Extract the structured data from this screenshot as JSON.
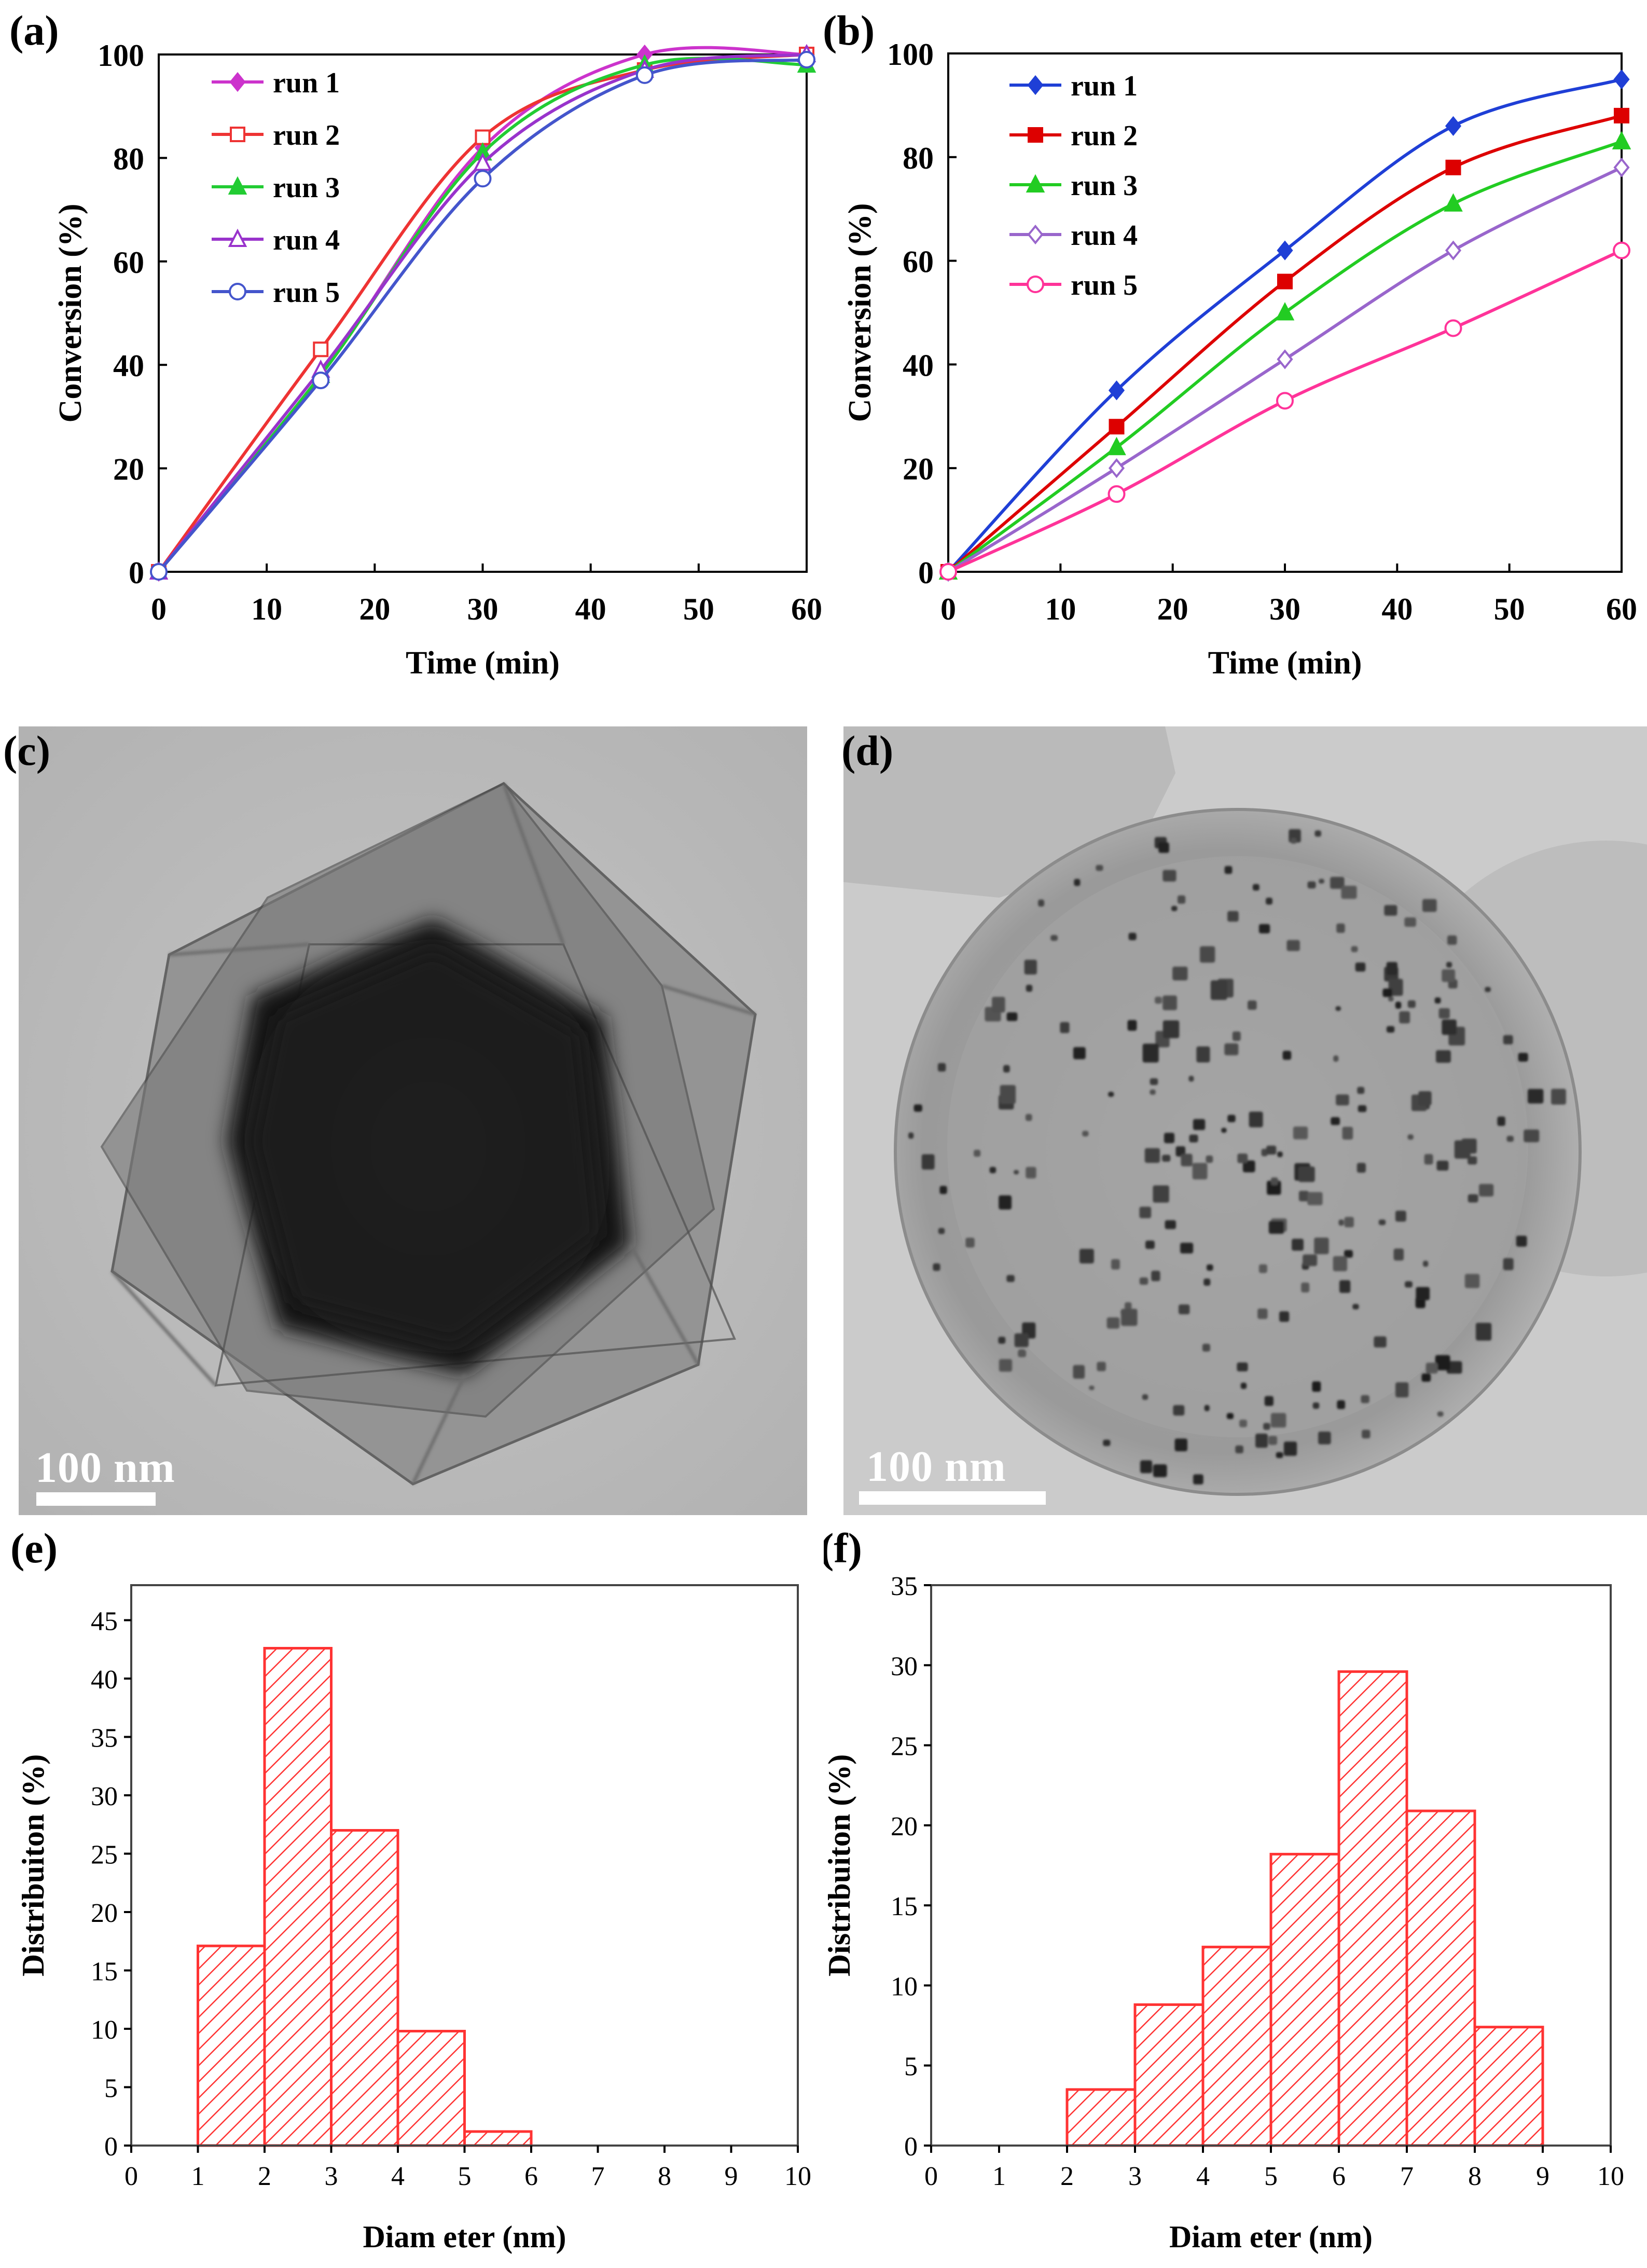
{
  "colors": {
    "run1_a": "#cc33cc",
    "run2_a": "#ee3333",
    "run3_a": "#22cc33",
    "run4_a": "#9933cc",
    "run5_a": "#4455cc",
    "run1_b": "#1f3fd6",
    "run2_b": "#dd0000",
    "run3_b": "#22cc22",
    "run4_b": "#9966cc",
    "run5_b": "#ff3399",
    "hist": "#ff3333"
  },
  "chart_data": [
    {
      "panel": "(a)",
      "type": "line",
      "xlabel": "Time (min)",
      "ylabel": "Conversion (%)",
      "xlim": [
        0,
        60
      ],
      "ylim": [
        0,
        100
      ],
      "xticks": [
        0,
        10,
        20,
        30,
        40,
        50,
        60
      ],
      "yticks": [
        0,
        20,
        40,
        60,
        80,
        100
      ],
      "x": [
        0,
        15,
        30,
        45,
        60
      ],
      "legend_position": "top-left",
      "series": [
        {
          "name": "run 1",
          "values": [
            0,
            38,
            82,
            100,
            100
          ],
          "marker": "diamond-filled",
          "color_key": "run1_a"
        },
        {
          "name": "run 2",
          "values": [
            0,
            43,
            84,
            97,
            100
          ],
          "marker": "square-open",
          "color_key": "run2_a"
        },
        {
          "name": "run 3",
          "values": [
            0,
            38,
            81,
            98,
            98
          ],
          "marker": "triangle-filled",
          "color_key": "run3_a"
        },
        {
          "name": "run 4",
          "values": [
            0,
            39,
            79,
            97,
            100
          ],
          "marker": "triangle-open",
          "color_key": "run4_a"
        },
        {
          "name": "run 5",
          "values": [
            0,
            37,
            76,
            96,
            99
          ],
          "marker": "circle-open",
          "color_key": "run5_a"
        }
      ]
    },
    {
      "panel": "(b)",
      "type": "line",
      "xlabel": "Time (min)",
      "ylabel": "Conversion (%)",
      "xlim": [
        0,
        60
      ],
      "ylim": [
        0,
        100
      ],
      "xticks": [
        0,
        10,
        20,
        30,
        40,
        50,
        60
      ],
      "yticks": [
        0,
        20,
        40,
        60,
        80,
        100
      ],
      "x": [
        0,
        15,
        30,
        45,
        60
      ],
      "legend_position": "top-left",
      "series": [
        {
          "name": "run 1",
          "values": [
            0,
            35,
            62,
            86,
            95
          ],
          "marker": "diamond-filled",
          "color_key": "run1_b"
        },
        {
          "name": "run 2",
          "values": [
            0,
            28,
            56,
            78,
            88
          ],
          "marker": "square-filled",
          "color_key": "run2_b"
        },
        {
          "name": "run 3",
          "values": [
            0,
            24,
            50,
            71,
            83
          ],
          "marker": "triangle-filled",
          "color_key": "run3_b"
        },
        {
          "name": "run 4",
          "values": [
            0,
            20,
            41,
            62,
            78
          ],
          "marker": "diamond-open",
          "color_key": "run4_b"
        },
        {
          "name": "run 5",
          "values": [
            0,
            15,
            33,
            47,
            62
          ],
          "marker": "circle-open",
          "color_key": "run5_b"
        }
      ]
    },
    {
      "panel": "(e)",
      "type": "bar",
      "xlabel": "Diam eter (nm)",
      "ylabel": "Distribuiton (%)",
      "xlim": [
        0,
        10
      ],
      "ylim": [
        0,
        48
      ],
      "xticks": [
        0,
        1,
        2,
        3,
        4,
        5,
        6,
        7,
        8,
        9,
        10
      ],
      "yticks": [
        0,
        5,
        10,
        15,
        20,
        25,
        30,
        35,
        40,
        45
      ],
      "bins": [
        [
          1,
          2
        ],
        [
          2,
          3
        ],
        [
          3,
          4
        ],
        [
          4,
          5
        ],
        [
          5,
          6
        ]
      ],
      "values": [
        17.1,
        42.6,
        27.0,
        9.8,
        1.2
      ]
    },
    {
      "panel": "(f)",
      "type": "bar",
      "xlabel": "Diam eter (nm)",
      "ylabel": "Distribuiton (%)",
      "xlim": [
        0,
        10
      ],
      "ylim": [
        0,
        35
      ],
      "xticks": [
        0,
        1,
        2,
        3,
        4,
        5,
        6,
        7,
        8,
        9,
        10
      ],
      "yticks": [
        0,
        5,
        10,
        15,
        20,
        25,
        30,
        35
      ],
      "bins": [
        [
          2,
          3
        ],
        [
          3,
          4
        ],
        [
          4,
          5
        ],
        [
          5,
          6
        ],
        [
          6,
          7
        ],
        [
          7,
          8
        ],
        [
          8,
          9
        ]
      ],
      "values": [
        3.5,
        8.8,
        12.4,
        18.2,
        29.6,
        20.9,
        7.4
      ]
    }
  ],
  "images": [
    {
      "panel": "(c)",
      "scale_label": "100 nm",
      "description_key": "tem-hollow-hexagon"
    },
    {
      "panel": "(d)",
      "scale_label": "100 nm",
      "description_key": "tem-particles-sphere"
    }
  ]
}
